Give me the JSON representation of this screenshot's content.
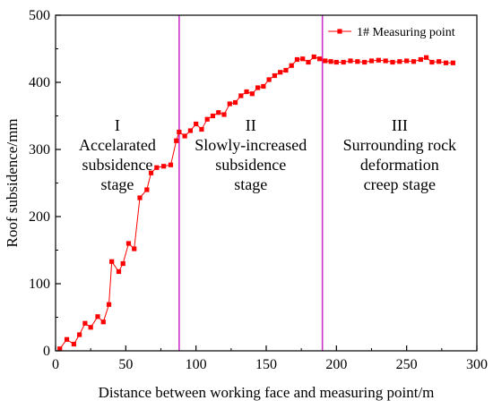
{
  "chart_data": {
    "type": "line",
    "xlabel": "Distance between working face and measuring point/m",
    "ylabel": "Roof subsidence/mm",
    "xlim": [
      0,
      300
    ],
    "ylim": [
      0,
      500
    ],
    "x_ticks": [
      0,
      50,
      100,
      150,
      200,
      250,
      300
    ],
    "y_ticks": [
      0,
      100,
      200,
      300,
      400,
      500
    ],
    "grid": false,
    "legend_position": "top-right",
    "colors": {
      "series": "#ff0000",
      "divider": "#cc33cc",
      "axis": "#000000"
    },
    "stage_dividers": [
      88,
      190
    ],
    "stage_labels": [
      {
        "lines": [
          "I",
          "Accelarated",
          "subsidence",
          "stage"
        ]
      },
      {
        "lines": [
          "II",
          "Slowly-increased",
          "subsidence",
          "stage"
        ]
      },
      {
        "lines": [
          "III",
          "Surrounding rock",
          "deformation",
          "creep stage"
        ]
      }
    ],
    "series": [
      {
        "name": "1# Measuring point",
        "marker": "square",
        "x": [
          3,
          8,
          13,
          17,
          21,
          25,
          30,
          34,
          38,
          40,
          45,
          48,
          52,
          56,
          60,
          65,
          68,
          72,
          77,
          82,
          86,
          88,
          92,
          96,
          100,
          104,
          108,
          112,
          116,
          120,
          124,
          128,
          132,
          136,
          140,
          144,
          148,
          152,
          156,
          160,
          164,
          168,
          172,
          176,
          180,
          184,
          188,
          192,
          196,
          200,
          205,
          210,
          215,
          220,
          225,
          230,
          235,
          240,
          245,
          250,
          255,
          260,
          264,
          268,
          273,
          278,
          283
        ],
        "y": [
          3,
          17,
          10,
          24,
          41,
          35,
          51,
          43,
          69,
          133,
          118,
          130,
          160,
          152,
          228,
          240,
          265,
          273,
          275,
          277,
          313,
          326,
          320,
          328,
          338,
          330,
          345,
          350,
          355,
          352,
          368,
          370,
          380,
          386,
          383,
          392,
          394,
          404,
          410,
          415,
          418,
          425,
          434,
          435,
          430,
          438,
          435,
          432,
          431,
          430,
          430,
          432,
          431,
          430,
          432,
          433,
          432,
          430,
          431,
          432,
          431,
          434,
          437,
          430,
          431,
          429,
          429
        ]
      }
    ]
  }
}
